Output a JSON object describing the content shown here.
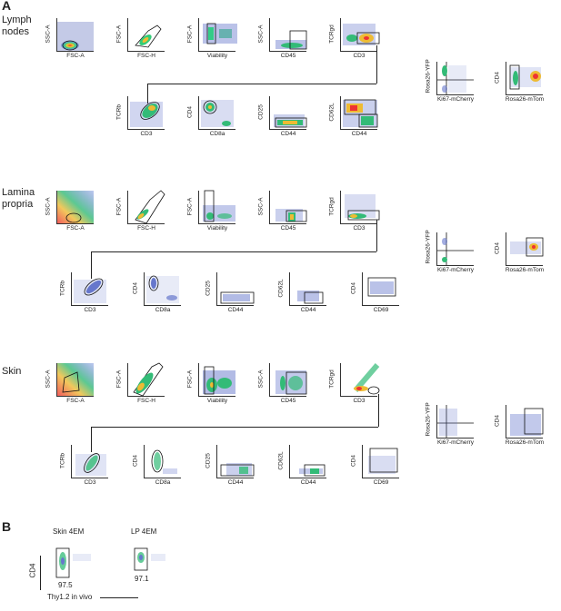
{
  "panels": {
    "a": "A",
    "b": "B"
  },
  "sections": [
    {
      "label_line1": "Lymph",
      "label_line2": "nodes"
    },
    {
      "label_line1": "Lamina",
      "label_line2": "propria"
    },
    {
      "label_line1": "Skin",
      "label_line2": ""
    }
  ],
  "axes": {
    "ssc_a": "SSC-A",
    "fsc_a": "FSC-A",
    "fsc_h": "FSC-H",
    "viability": "Viability",
    "cd45": "CD45",
    "tcrgd": "TCRgd",
    "cd3": "CD3",
    "tcrb": "TCRb",
    "cd4": "CD4",
    "cd8a": "CD8a",
    "cd25": "CD25",
    "cd44": "CD44",
    "cd62l": "CD62L",
    "cd69": "CD69",
    "rosa_yfp": "Rosa26-YFP",
    "ki67": "Ki67-mCherry",
    "rosa_mtom": "Rosa26-mTom"
  },
  "panel_b": {
    "skin_title": "Skin 4EM",
    "lp_title": "LP 4EM",
    "skin_value": "97.5",
    "lp_value": "97.1",
    "ylabel": "CD4",
    "xlabel": "Thy1.2 in vivo"
  }
}
